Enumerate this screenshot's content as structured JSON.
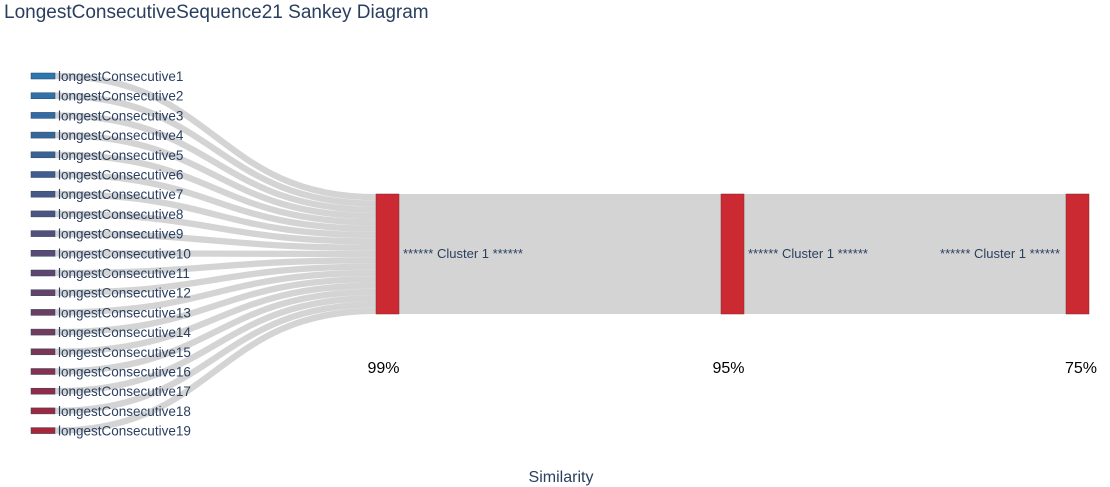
{
  "title": "LongestConsecutiveSequence21 Sankey Diagram",
  "x_axis_label": "Similarity",
  "sources": [
    {
      "label": "longestConsecutive1",
      "color": "#2c77b0"
    },
    {
      "label": "longestConsecutive2",
      "color": "#2e72a9"
    },
    {
      "label": "longestConsecutive3",
      "color": "#326ca2"
    },
    {
      "label": "longestConsecutive4",
      "color": "#36679b"
    },
    {
      "label": "longestConsecutive5",
      "color": "#3b6294"
    },
    {
      "label": "longestConsecutive6",
      "color": "#405d8d"
    },
    {
      "label": "longestConsecutive7",
      "color": "#465887"
    },
    {
      "label": "longestConsecutive8",
      "color": "#4c5480"
    },
    {
      "label": "longestConsecutive9",
      "color": "#524f7a"
    },
    {
      "label": "longestConsecutive10",
      "color": "#584b74"
    },
    {
      "label": "longestConsecutive11",
      "color": "#5e476e"
    },
    {
      "label": "longestConsecutive12",
      "color": "#654368"
    },
    {
      "label": "longestConsecutive13",
      "color": "#6c3f62"
    },
    {
      "label": "longestConsecutive14",
      "color": "#733b5c"
    },
    {
      "label": "longestConsecutive15",
      "color": "#7c3655"
    },
    {
      "label": "longestConsecutive16",
      "color": "#85314f"
    },
    {
      "label": "longestConsecutive17",
      "color": "#902c47"
    },
    {
      "label": "longestConsecutive18",
      "color": "#9c2840"
    },
    {
      "label": "longestConsecutive19",
      "color": "#a82638"
    }
  ],
  "clusters": [
    {
      "label": "****** Cluster 1 ******",
      "level": "99%",
      "color": "#cc2a33"
    },
    {
      "label": "****** Cluster 1 ******",
      "level": "95%",
      "color": "#cc2a33"
    },
    {
      "label": "****** Cluster 1 ******",
      "level": "75%",
      "color": "#cc2a33"
    }
  ],
  "link_color": "#cccccc",
  "flows": {
    "source_to_cluster_each": 1,
    "cluster_to_cluster": [
      19,
      19
    ]
  }
}
